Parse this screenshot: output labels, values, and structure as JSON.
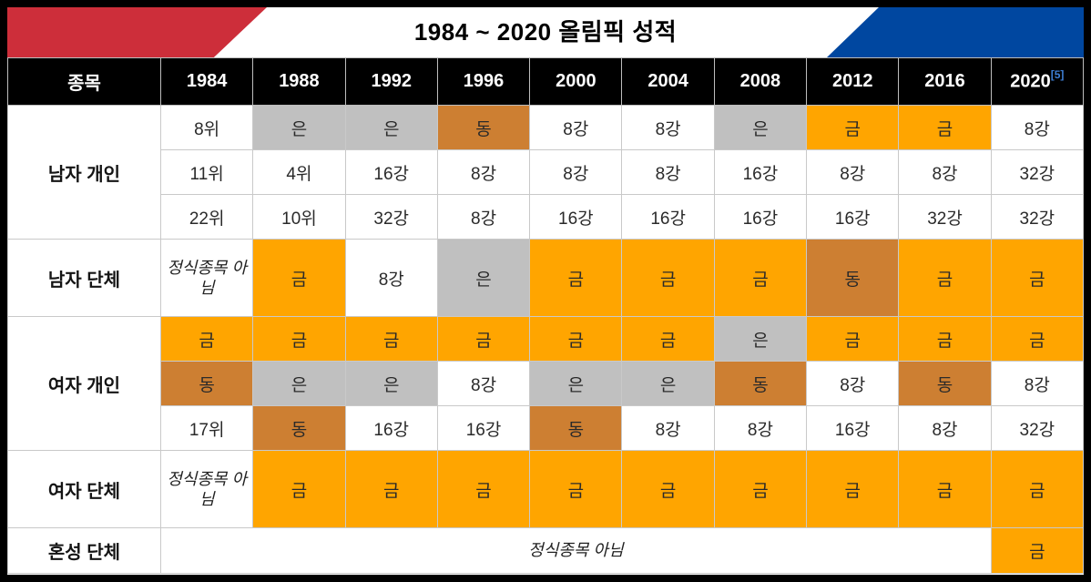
{
  "title": "1984 ~ 2020 올림픽 성적",
  "banner": {
    "red": "#CD2E3A",
    "blue": "#0047A0"
  },
  "header": {
    "category_label": "종목",
    "years": [
      "1984",
      "1988",
      "1992",
      "1996",
      "2000",
      "2004",
      "2008",
      "2012",
      "2016",
      "2020"
    ],
    "footnote": {
      "text": "[5]",
      "year": "2020",
      "color": "#3e7fd6"
    }
  },
  "medal_colors": {
    "금": "#FFA500",
    "은": "#C0C0C0",
    "동": "#CD7F32"
  },
  "not_official_text": "정식종목 아님",
  "rows": [
    {
      "label": "남자 개인",
      "lines": [
        [
          "8위",
          "은",
          "은",
          "동",
          "8강",
          "8강",
          "은",
          "금",
          "금",
          "8강"
        ],
        [
          "11위",
          "4위",
          "16강",
          "8강",
          "8강",
          "8강",
          "16강",
          "8강",
          "8강",
          "32강"
        ],
        [
          "22위",
          "10위",
          "32강",
          "8강",
          "16강",
          "16강",
          "16강",
          "16강",
          "32강",
          "32강"
        ]
      ]
    },
    {
      "label": "남자 단체",
      "lines": [
        [
          "정식종목 아님",
          "금",
          "8강",
          "은",
          "금",
          "금",
          "금",
          "동",
          "금",
          "금"
        ]
      ]
    },
    {
      "label": "여자 개인",
      "lines": [
        [
          "금",
          "금",
          "금",
          "금",
          "금",
          "금",
          "은",
          "금",
          "금",
          "금"
        ],
        [
          "동",
          "은",
          "은",
          "8강",
          "은",
          "은",
          "동",
          "8강",
          "동",
          "8강"
        ],
        [
          "17위",
          "동",
          "16강",
          "16강",
          "동",
          "8강",
          "8강",
          "16강",
          "8강",
          "32강"
        ]
      ]
    },
    {
      "label": "여자 단체",
      "lines": [
        [
          "정식종목 아님",
          "금",
          "금",
          "금",
          "금",
          "금",
          "금",
          "금",
          "금",
          "금"
        ]
      ]
    },
    {
      "label": "혼성 단체",
      "lines": [
        [
          {
            "text": "정식종목 아님",
            "colspan": 9
          },
          "금"
        ]
      ]
    }
  ]
}
